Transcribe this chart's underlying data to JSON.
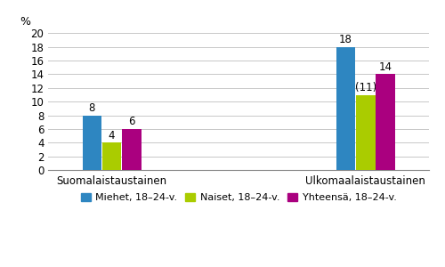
{
  "groups": [
    "Suomalaistaustainen",
    "Ulkomaalaistaustainen"
  ],
  "series": [
    {
      "label": "Miehet, 18–24-v.",
      "color": "#2E86C1",
      "values": [
        8,
        18
      ]
    },
    {
      "label": "Naiset, 18–24-v.",
      "color": "#AACC00",
      "values": [
        4,
        11
      ]
    },
    {
      "label": "Yhteensä, 18–24-v.",
      "color": "#AA007F",
      "values": [
        6,
        14
      ]
    }
  ],
  "bar_labels": [
    [
      8,
      4,
      6
    ],
    [
      18,
      "(11)",
      14
    ]
  ],
  "ylabel": "%",
  "ylim": [
    0,
    20
  ],
  "yticks": [
    0,
    2,
    4,
    6,
    8,
    10,
    12,
    14,
    16,
    18,
    20
  ],
  "bar_width": 0.12,
  "group_centers": [
    1.0,
    2.6
  ],
  "background_color": "#ffffff",
  "grid_color": "#c8c8c8",
  "label_fontsize": 8.5,
  "tick_fontsize": 8.5,
  "legend_fontsize": 8.0,
  "ylabel_fontsize": 9
}
